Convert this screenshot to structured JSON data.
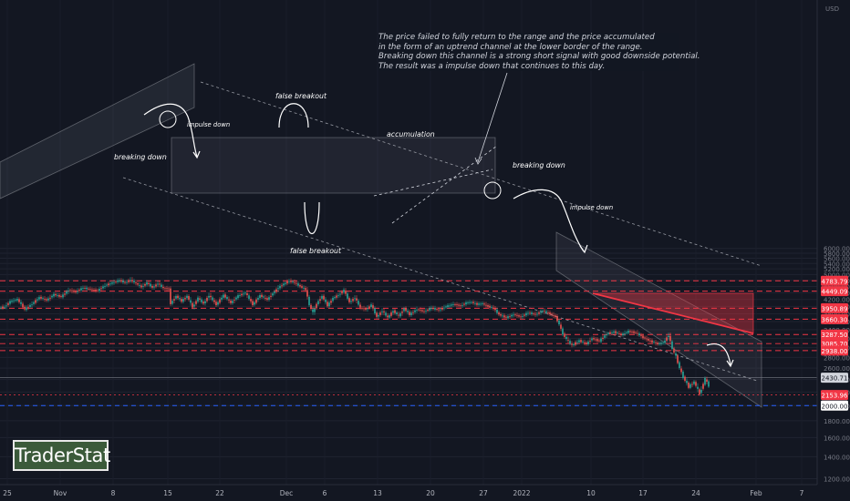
{
  "chart_data": {
    "type": "candlestick",
    "currency_label": "USD",
    "y_ticks": [
      1200,
      1400,
      1600,
      1800,
      2000,
      2200,
      2400,
      2600,
      2800,
      3000,
      3200,
      3400,
      3600,
      3800,
      4000,
      4200,
      4400,
      4600,
      4800,
      5000,
      5200,
      5400,
      5600,
      5800,
      6000
    ],
    "y_tick_labels": [
      "1200.00",
      "1400.00",
      "1600.00",
      "1800.00",
      "2000.00",
      "2200.00",
      "2400.00",
      "2600.00",
      "2800.00",
      "3000.00",
      "3200.00",
      "3400.00",
      "3600.00",
      "3800.00",
      "4000.00",
      "4200.00",
      "4400.00",
      "4600.00",
      "4800.00",
      "5000.00",
      "5200.00",
      "5400.00",
      "5600.00",
      "5800.00",
      "6000.00"
    ],
    "x_tick_labels": [
      "25",
      "Nov",
      "8",
      "15",
      "22",
      "Dec",
      "6",
      "13",
      "20",
      "27",
      "2022",
      "10",
      "17",
      "24",
      "Feb",
      "7"
    ],
    "levels": [
      {
        "label": "4783.79",
        "value": 4783.79,
        "style": "red-dashed"
      },
      {
        "label": "4449.09",
        "value": 4449.09,
        "style": "red-dashed"
      },
      {
        "label": "3950.89",
        "value": 3950.89,
        "style": "red-dashed"
      },
      {
        "label": "3660.30",
        "value": 3660.3,
        "style": "red-dashed"
      },
      {
        "label": "3287.50",
        "value": 3287.5,
        "style": "red-dashed"
      },
      {
        "label": "3085.70",
        "value": 3085.7,
        "style": "red-dashed-thin"
      },
      {
        "label": "2938.00",
        "value": 2938.0,
        "style": "red-dashed"
      },
      {
        "label": "2153.96",
        "value": 2153.96,
        "style": "red-dotted"
      },
      {
        "label": "2000.00",
        "value": 2000.0,
        "style": "blue-dashed"
      }
    ],
    "last_price": {
      "label": "2430.71",
      "value": 2430.71
    },
    "annotations": [
      "impulse down",
      "breaking down",
      "false breakout",
      "false breakout",
      "accumulation",
      "breaking down",
      "impulse down"
    ],
    "note_lines": [
      "The price failed to fully return to the range and the price accumulated",
      "in the form of an uptrend channel at the lower border of the range.",
      "Breaking down this channel is a strong short signal with good downside potential.",
      "The result was a impulse down that continues to this day."
    ],
    "series_path": [
      [
        0,
        3960
      ],
      [
        6,
        3990
      ],
      [
        12,
        4140
      ],
      [
        20,
        4200
      ],
      [
        28,
        3920
      ],
      [
        36,
        4070
      ],
      [
        44,
        4260
      ],
      [
        52,
        4180
      ],
      [
        60,
        4350
      ],
      [
        68,
        4280
      ],
      [
        76,
        4480
      ],
      [
        84,
        4430
      ],
      [
        92,
        4560
      ],
      [
        100,
        4500
      ],
      [
        108,
        4470
      ],
      [
        116,
        4630
      ],
      [
        124,
        4720
      ],
      [
        132,
        4800
      ],
      [
        138,
        4720
      ],
      [
        144,
        4820
      ],
      [
        150,
        4700
      ],
      [
        156,
        4580
      ],
      [
        162,
        4720
      ],
      [
        168,
        4560
      ],
      [
        174,
        4700
      ],
      [
        180,
        4540
      ],
      [
        186,
        4520
      ],
      [
        188,
        4080
      ],
      [
        194,
        4300
      ],
      [
        200,
        4150
      ],
      [
        206,
        4300
      ],
      [
        212,
        3980
      ],
      [
        218,
        4240
      ],
      [
        224,
        4080
      ],
      [
        230,
        4320
      ],
      [
        238,
        4050
      ],
      [
        246,
        4330
      ],
      [
        254,
        4100
      ],
      [
        262,
        4310
      ],
      [
        270,
        4400
      ],
      [
        278,
        4050
      ],
      [
        286,
        4320
      ],
      [
        294,
        4200
      ],
      [
        300,
        4380
      ],
      [
        306,
        4560
      ],
      [
        312,
        4680
      ],
      [
        318,
        4780
      ],
      [
        324,
        4720
      ],
      [
        330,
        4600
      ],
      [
        336,
        4500
      ],
      [
        340,
        4040
      ],
      [
        344,
        3830
      ],
      [
        348,
        4070
      ],
      [
        354,
        4300
      ],
      [
        360,
        4020
      ],
      [
        366,
        4240
      ],
      [
        372,
        4330
      ],
      [
        378,
        4480
      ],
      [
        384,
        4120
      ],
      [
        390,
        4250
      ],
      [
        396,
        3960
      ],
      [
        402,
        3920
      ],
      [
        408,
        4040
      ],
      [
        414,
        3720
      ],
      [
        420,
        3880
      ],
      [
        426,
        3700
      ],
      [
        432,
        3880
      ],
      [
        438,
        3740
      ],
      [
        444,
        3940
      ],
      [
        450,
        3780
      ],
      [
        458,
        3920
      ],
      [
        466,
        3860
      ],
      [
        474,
        3960
      ],
      [
        482,
        3900
      ],
      [
        490,
        4000
      ],
      [
        498,
        4060
      ],
      [
        506,
        4020
      ],
      [
        512,
        4100
      ],
      [
        518,
        4120
      ],
      [
        524,
        4060
      ],
      [
        530,
        4080
      ],
      [
        536,
        4000
      ],
      [
        542,
        3950
      ],
      [
        548,
        3780
      ],
      [
        556,
        3700
      ],
      [
        564,
        3780
      ],
      [
        572,
        3720
      ],
      [
        580,
        3830
      ],
      [
        588,
        3780
      ],
      [
        596,
        3880
      ],
      [
        604,
        3800
      ],
      [
        610,
        3720
      ],
      [
        614,
        3530
      ],
      [
        618,
        3300
      ],
      [
        622,
        3180
      ],
      [
        628,
        3050
      ],
      [
        636,
        3150
      ],
      [
        644,
        3080
      ],
      [
        650,
        3200
      ],
      [
        658,
        3140
      ],
      [
        666,
        3300
      ],
      [
        674,
        3350
      ],
      [
        682,
        3280
      ],
      [
        690,
        3360
      ],
      [
        698,
        3330
      ],
      [
        706,
        3220
      ],
      [
        714,
        3140
      ],
      [
        722,
        3080
      ],
      [
        728,
        3100
      ],
      [
        734,
        3270
      ],
      [
        738,
        2980
      ],
      [
        742,
        2820
      ],
      [
        746,
        2600
      ],
      [
        750,
        2440
      ],
      [
        756,
        2280
      ],
      [
        762,
        2360
      ],
      [
        768,
        2170
      ],
      [
        774,
        2410
      ],
      [
        778,
        2300
      ]
    ],
    "upper_channel_label": "",
    "chart_kind": "price chart with trend channels, ranges and support/resistance levels"
  },
  "branding": {
    "logo_text": "TraderStat"
  }
}
